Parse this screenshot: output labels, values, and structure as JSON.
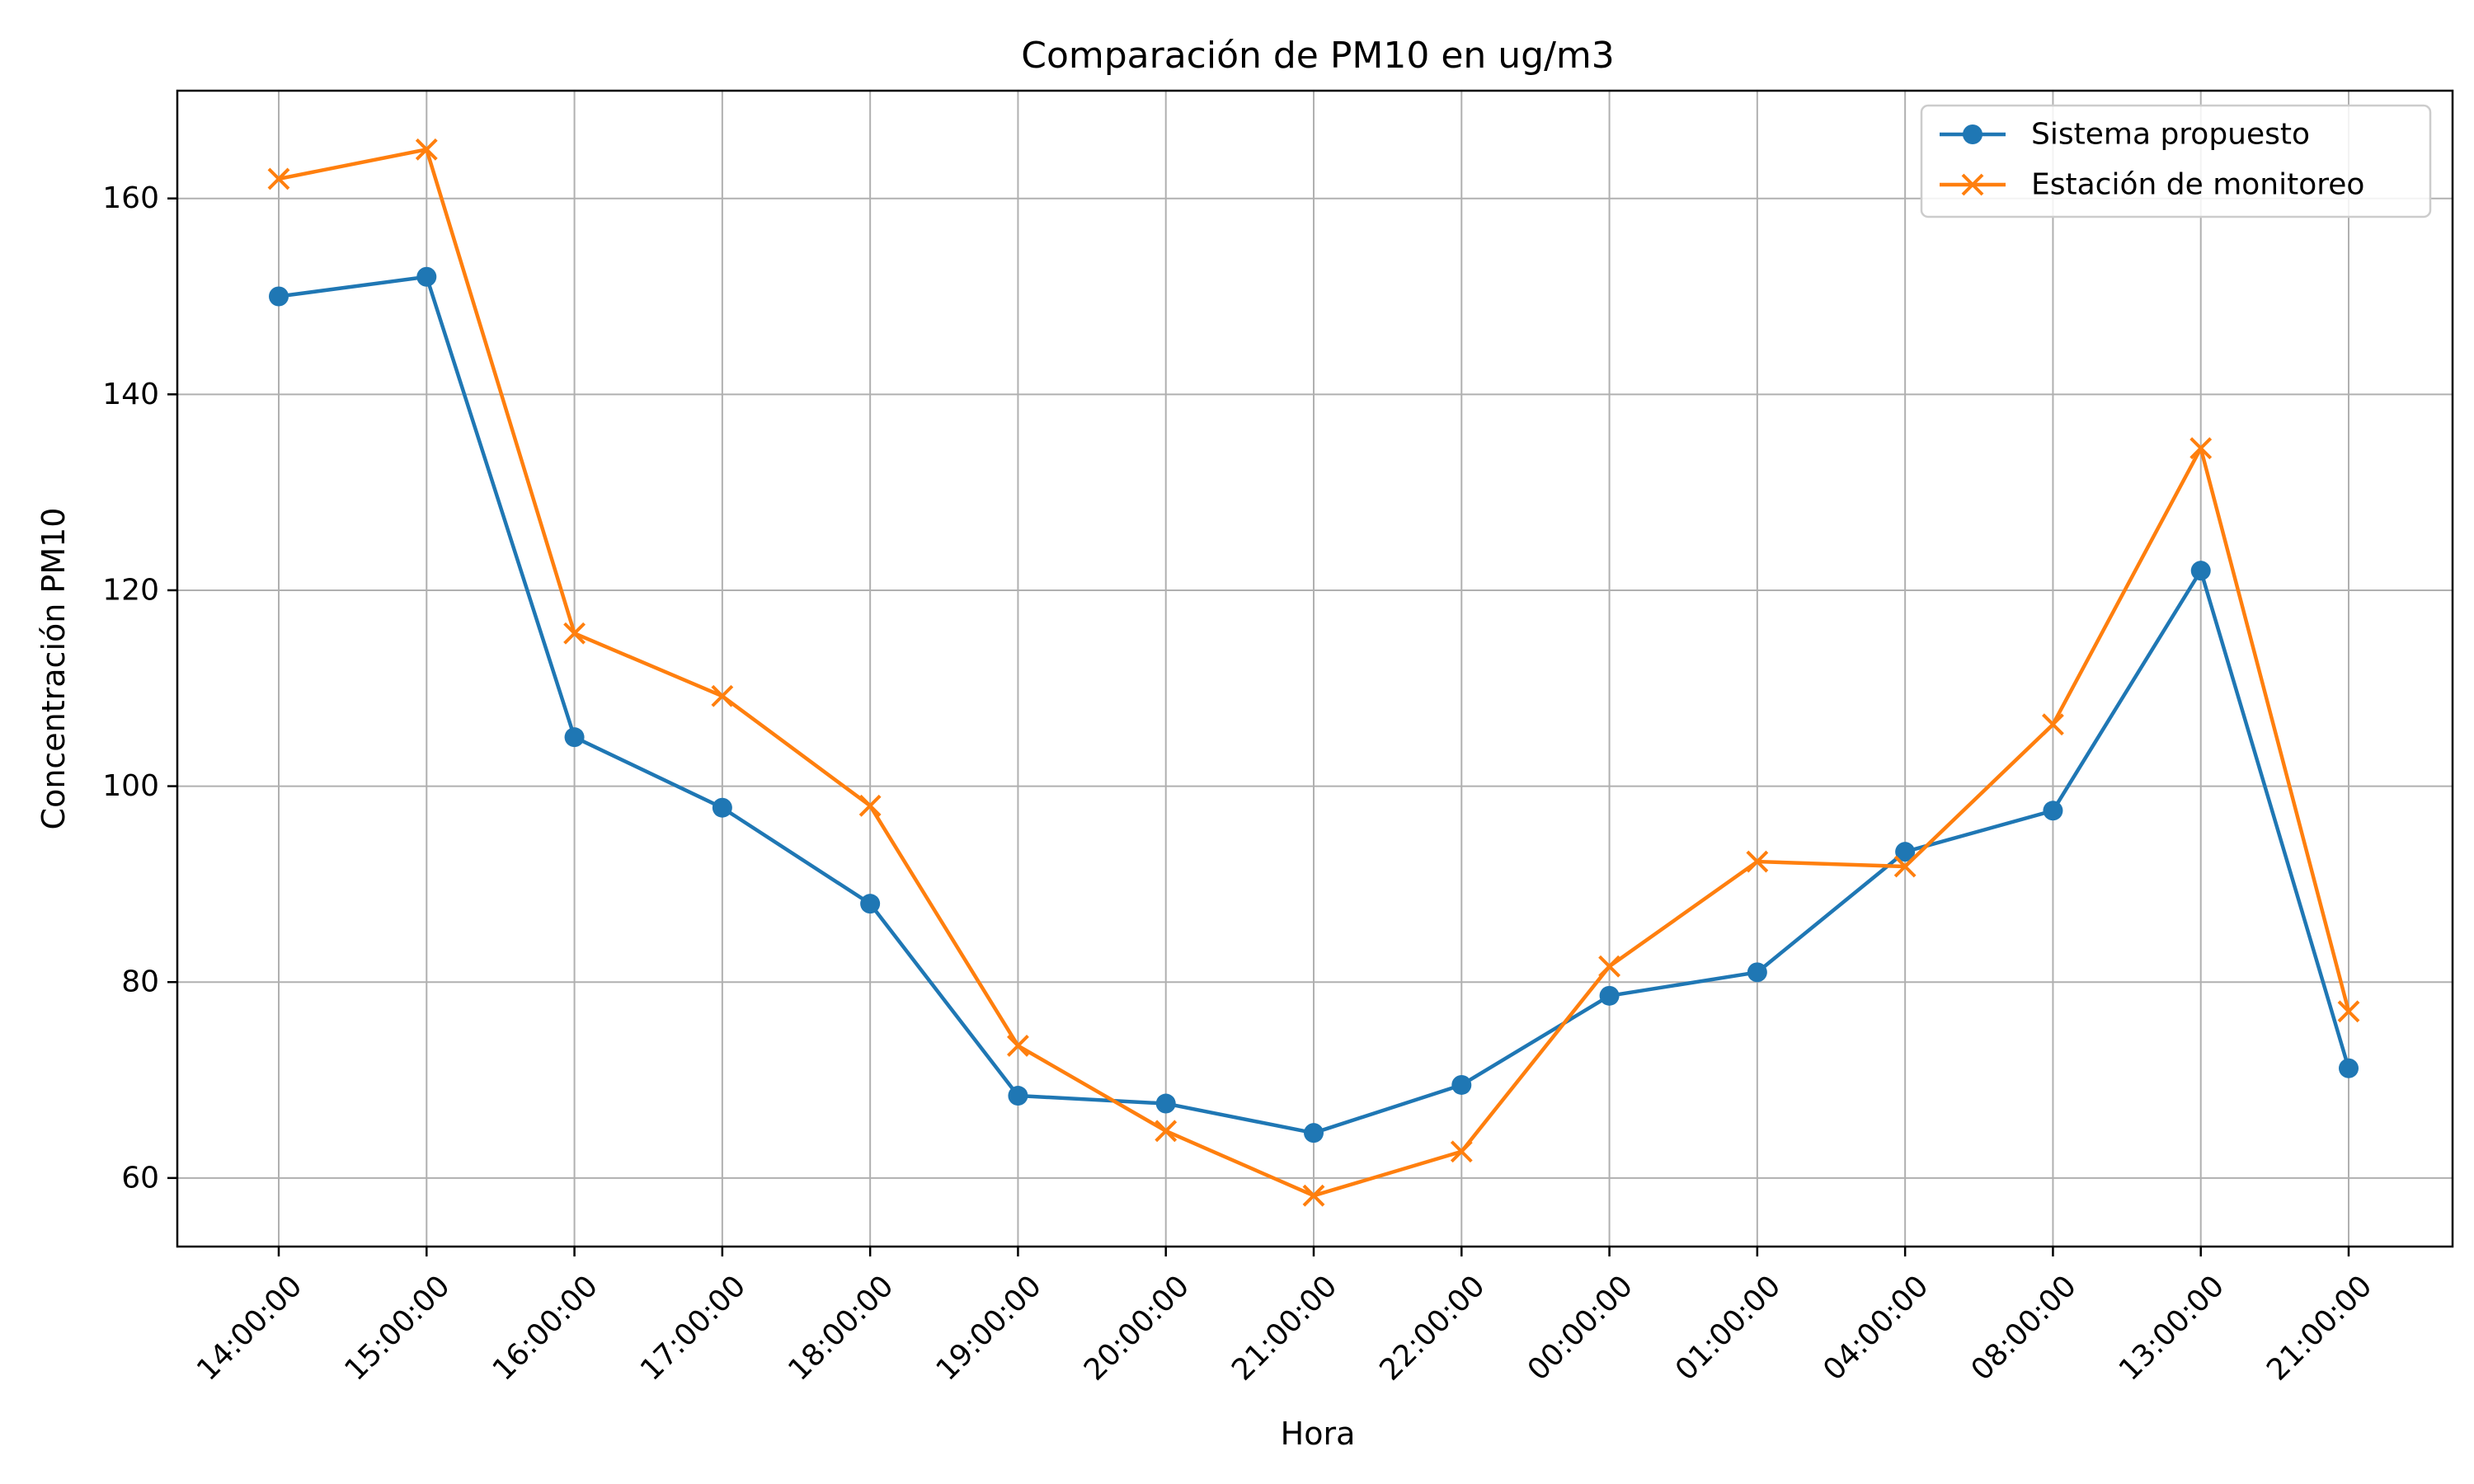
{
  "chart_data": {
    "type": "line",
    "title": "Comparación de PM10 en ug/m3",
    "xlabel": "Hora",
    "ylabel": "Concentración PM10",
    "categories": [
      "14:00:00",
      "15:00:00",
      "16:00:00",
      "17:00:00",
      "18:00:00",
      "19:00:00",
      "20:00:00",
      "21:00:00",
      "22:00:00",
      "00:00:00",
      "01:00:00",
      "04:00:00",
      "08:00:00",
      "13:00:00",
      "21:00:00"
    ],
    "ylim": [
      53,
      171
    ],
    "yticks": [
      60,
      80,
      100,
      120,
      140,
      160
    ],
    "grid": true,
    "legend_position": "top-right",
    "series": [
      {
        "name": "Sistema propuesto",
        "color": "#1f77b4",
        "marker": "circle",
        "values": [
          150.0,
          152.0,
          105.0,
          97.8,
          88.0,
          68.4,
          67.6,
          64.6,
          69.5,
          78.6,
          81.0,
          93.3,
          97.5,
          122.0,
          71.2
        ]
      },
      {
        "name": "Estación de monitoreo",
        "color": "#ff7f0e",
        "marker": "x",
        "values": [
          162.0,
          165.0,
          115.6,
          109.2,
          98.0,
          73.5,
          64.8,
          58.2,
          62.7,
          81.6,
          92.3,
          91.8,
          106.3,
          134.5,
          77.0
        ]
      }
    ]
  }
}
